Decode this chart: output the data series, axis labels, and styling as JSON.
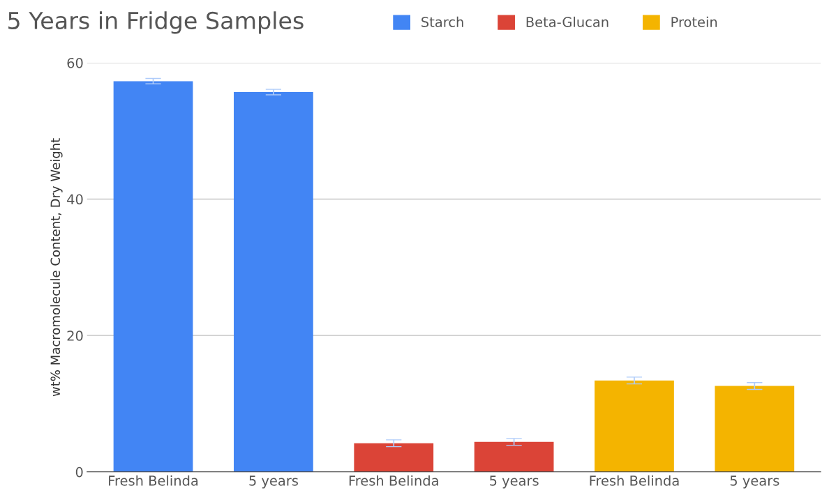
{
  "chart_data": {
    "type": "bar",
    "title": "5 Years in Fridge Samples",
    "ylabel": "wt% Macromolecule Content, Dry Weight",
    "categories": [
      "Fresh Belinda",
      "5 years",
      "Fresh Belinda",
      "5 years",
      "Fresh Belinda",
      "5 years"
    ],
    "series": [
      {
        "name": "Starch",
        "color": "#4285f4",
        "values": [
          57.3,
          55.7,
          null,
          null,
          null,
          null
        ],
        "errors": [
          0.4,
          0.4,
          null,
          null,
          null,
          null
        ]
      },
      {
        "name": "Beta-Glucan",
        "color": "#db4437",
        "values": [
          null,
          null,
          4.2,
          4.4,
          null,
          null
        ],
        "errors": [
          null,
          null,
          0.5,
          0.5,
          null,
          null
        ]
      },
      {
        "name": "Protein",
        "color": "#f4b400",
        "values": [
          null,
          null,
          null,
          null,
          13.4,
          12.6
        ],
        "errors": [
          null,
          null,
          null,
          null,
          0.5,
          0.5
        ]
      }
    ],
    "ylim": [
      0,
      60
    ],
    "yticks": [
      0,
      20,
      40,
      60
    ],
    "grid": "y",
    "legend": "top"
  }
}
